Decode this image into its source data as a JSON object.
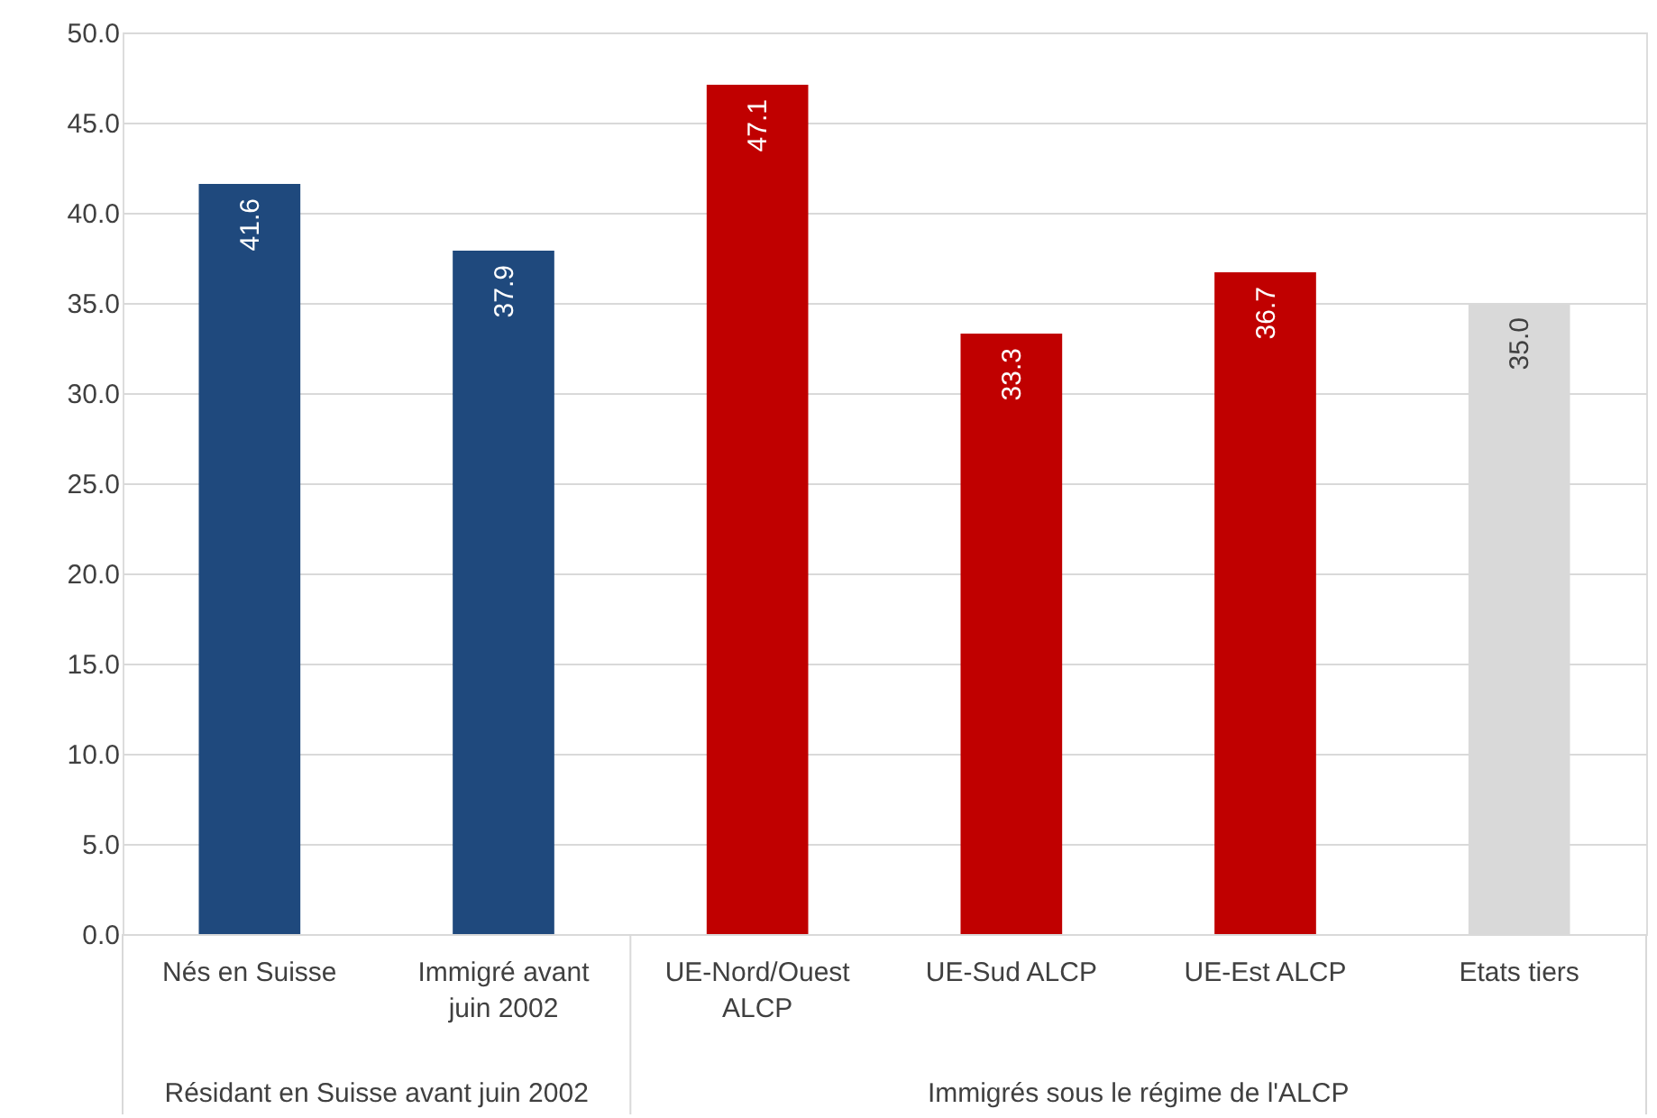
{
  "chart_data": {
    "type": "bar",
    "categories": [
      "Nés en Suisse",
      "Immigré avant juin 2002",
      "UE-Nord/Ouest ALCP",
      "UE-Sud ALCP",
      "UE-Est ALCP",
      "Etats tiers"
    ],
    "values": [
      41.6,
      37.9,
      47.1,
      33.3,
      36.7,
      35.0
    ],
    "colors": [
      "#1f497d",
      "#1f497d",
      "#c00000",
      "#c00000",
      "#c00000",
      "#d9d9d9"
    ],
    "value_labels": [
      "41.6",
      "37.9",
      "47.1",
      "33.3",
      "36.7",
      "35.0"
    ],
    "ylim": [
      0,
      50
    ],
    "yticks": [
      {
        "value": 0,
        "label": "0.0"
      },
      {
        "value": 5,
        "label": "5.0"
      },
      {
        "value": 10,
        "label": "10.0"
      },
      {
        "value": 15,
        "label": "15.0"
      },
      {
        "value": 20,
        "label": "20.0"
      },
      {
        "value": 25,
        "label": "25.0"
      },
      {
        "value": 30,
        "label": "30.0"
      },
      {
        "value": 35,
        "label": "35.0"
      },
      {
        "value": 40,
        "label": "40.0"
      },
      {
        "value": 45,
        "label": "45.0"
      },
      {
        "value": 50,
        "label": "50.0"
      }
    ],
    "grid": "y",
    "annotations": [
      "Résidant en Suisse avant juin 2002",
      "Immigrés sous le régime de l'ALCP"
    ]
  }
}
